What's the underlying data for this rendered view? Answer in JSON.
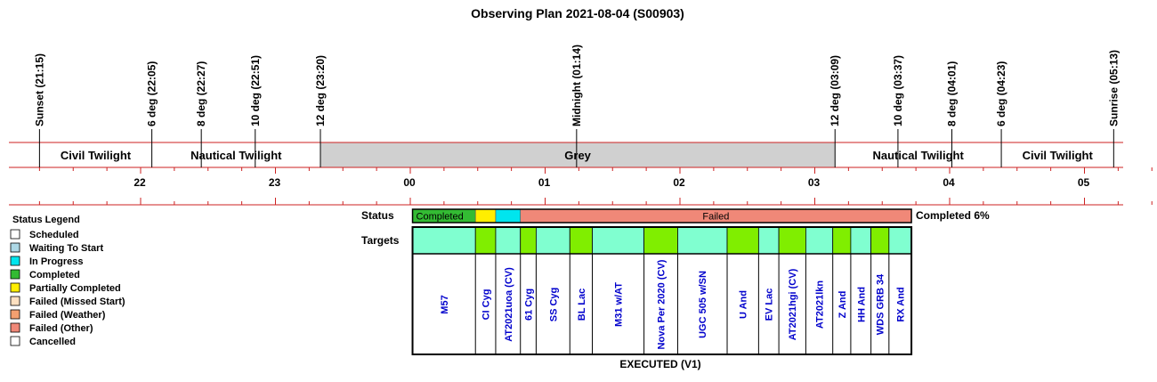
{
  "title": "Observing Plan 2021-08-04 (S00903)",
  "colors": {
    "completed": "#33bb33",
    "partial": "#ffee00",
    "in_progress": "#00e5ee",
    "failed": "#f08878",
    "target_a": "#80ffd0",
    "target_b": "#80ee00",
    "grey_band": "#d0d0d0",
    "rule": "#cc2222",
    "target_text": "#0000cc"
  },
  "chart_data": {
    "type": "timeline",
    "hour_axis": {
      "ticks": [
        {
          "label": "22",
          "hour": 22
        },
        {
          "label": "23",
          "hour": 23
        },
        {
          "label": "00",
          "hour": 24
        },
        {
          "label": "01",
          "hour": 25
        },
        {
          "label": "02",
          "hour": 26
        },
        {
          "label": "03",
          "hour": 27
        },
        {
          "label": "04",
          "hour": 28
        },
        {
          "label": "05",
          "hour": 29
        }
      ]
    },
    "events": [
      {
        "label": "Sunset (21:15)",
        "hour": 21.25
      },
      {
        "label": "6 deg (22:05)",
        "hour": 22.0833
      },
      {
        "label": "8 deg (22:27)",
        "hour": 22.45
      },
      {
        "label": "10 deg (22:51)",
        "hour": 22.85
      },
      {
        "label": "12 deg (23:20)",
        "hour": 23.3333
      },
      {
        "label": "Midnight (01:14)",
        "hour": 25.2333
      },
      {
        "label": "12 deg (03:09)",
        "hour": 27.15
      },
      {
        "label": "10 deg (03:37)",
        "hour": 27.6167
      },
      {
        "label": "8 deg (04:01)",
        "hour": 28.0167
      },
      {
        "label": "6 deg (04:23)",
        "hour": 28.3833
      },
      {
        "label": "Sunrise (05:13)",
        "hour": 29.2167
      }
    ],
    "periods": [
      {
        "label": "Civil Twilight",
        "start": 21.25,
        "end": 22.0833,
        "shaded": false
      },
      {
        "label": "Nautical Twilight",
        "start": 22.0833,
        "end": 23.3333,
        "shaded": false
      },
      {
        "label": "Grey",
        "start": 23.3333,
        "end": 27.15,
        "shaded": true
      },
      {
        "label": "Nautical Twilight",
        "start": 27.15,
        "end": 28.3833,
        "shaded": false
      },
      {
        "label": "Civil Twilight",
        "start": 28.3833,
        "end": 29.2167,
        "shaded": false
      }
    ],
    "status_row_label": "Status",
    "targets_row_label": "Targets",
    "status_segments": [
      {
        "label": "Completed",
        "status": "completed",
        "start": 24.0167,
        "end": 24.4833
      },
      {
        "label": "",
        "status": "partial",
        "start": 24.4833,
        "end": 24.6333
      },
      {
        "label": "",
        "status": "in_progress",
        "start": 24.6333,
        "end": 24.8167
      },
      {
        "label": "Failed",
        "status": "failed",
        "start": 24.8167,
        "end": 27.7167
      }
    ],
    "completed_text": "Completed 6%",
    "targets": [
      {
        "name": "M57",
        "start": 24.0167,
        "end": 24.4833,
        "shade": "a"
      },
      {
        "name": "CI Cyg",
        "start": 24.4833,
        "end": 24.6333,
        "shade": "b"
      },
      {
        "name": "AT2021uoa (CV)",
        "start": 24.6333,
        "end": 24.8167,
        "shade": "a"
      },
      {
        "name": "61 Cyg",
        "start": 24.8167,
        "end": 24.9333,
        "shade": "b"
      },
      {
        "name": "SS Cyg",
        "start": 24.9333,
        "end": 25.1833,
        "shade": "a"
      },
      {
        "name": "BL Lac",
        "start": 25.1833,
        "end": 25.35,
        "shade": "b"
      },
      {
        "name": "M31 w/AT",
        "start": 25.35,
        "end": 25.7333,
        "shade": "a"
      },
      {
        "name": "Nova Per 2020 (CV)",
        "start": 25.7333,
        "end": 25.9833,
        "shade": "b"
      },
      {
        "name": "UGC 505 w/SN",
        "start": 25.9833,
        "end": 26.35,
        "shade": "a"
      },
      {
        "name": "U And",
        "start": 26.35,
        "end": 26.5833,
        "shade": "b"
      },
      {
        "name": "EV Lac",
        "start": 26.5833,
        "end": 26.7333,
        "shade": "a"
      },
      {
        "name": "AT2021hgi (CV)",
        "start": 26.7333,
        "end": 26.9333,
        "shade": "b"
      },
      {
        "name": "AT2021lkn",
        "start": 26.9333,
        "end": 27.1333,
        "shade": "a"
      },
      {
        "name": "Z And",
        "start": 27.1333,
        "end": 27.2667,
        "shade": "b"
      },
      {
        "name": "HH And",
        "start": 27.2667,
        "end": 27.4167,
        "shade": "a"
      },
      {
        "name": "WDS GRB 34",
        "start": 27.4167,
        "end": 27.55,
        "shade": "b"
      },
      {
        "name": "RX And",
        "start": 27.55,
        "end": 27.7167,
        "shade": "a"
      }
    ],
    "footer": "EXECUTED (V1)"
  },
  "legend": {
    "title": "Status Legend",
    "items": [
      {
        "label": "Scheduled",
        "color": "#ffffff"
      },
      {
        "label": "Waiting To Start",
        "color": "#add8e6"
      },
      {
        "label": "In Progress",
        "color": "#00e5ee"
      },
      {
        "label": "Completed",
        "color": "#33bb33"
      },
      {
        "label": "Partially Completed",
        "color": "#ffee00"
      },
      {
        "label": "Failed (Missed Start)",
        "color": "#fde0c0"
      },
      {
        "label": "Failed (Weather)",
        "color": "#f4a070"
      },
      {
        "label": "Failed (Other)",
        "color": "#f08878"
      },
      {
        "label": "Cancelled",
        "color": "#ffffff"
      }
    ]
  }
}
